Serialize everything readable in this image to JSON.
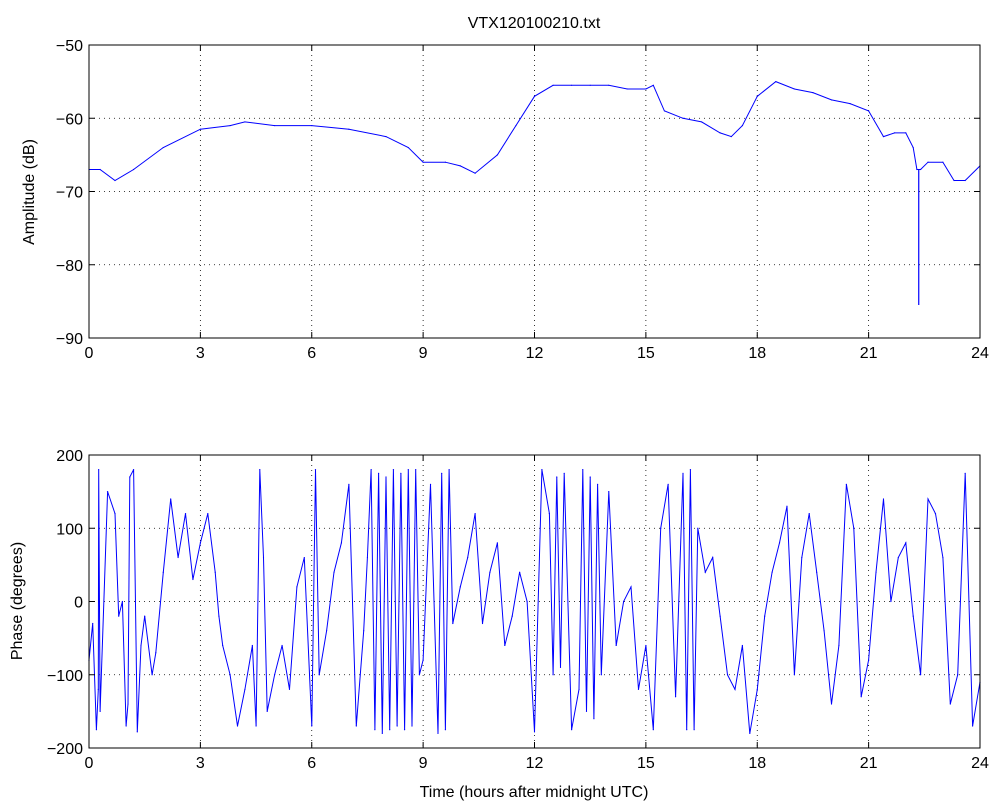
{
  "chart_data": [
    {
      "type": "line",
      "title": "VTX120100210.txt",
      "xlabel": "",
      "ylabel": "Amplitude (dB)",
      "xlim": [
        0,
        24
      ],
      "ylim": [
        -90,
        -50
      ],
      "xticks": [
        "0",
        "3",
        "6",
        "9",
        "12",
        "15",
        "18",
        "21",
        "24"
      ],
      "yticks": [
        "−90",
        "−80",
        "−70",
        "−60",
        "−50"
      ],
      "grid": true,
      "color": "#0000ff",
      "series": [
        {
          "x": [
            0,
            0.3,
            0.7,
            1.2,
            2,
            3,
            3.8,
            4.2,
            5,
            6,
            7,
            8,
            8.6,
            9,
            9.6,
            10,
            10.4,
            11,
            11.5,
            12,
            12.5,
            13,
            13.5,
            14,
            14.5,
            15,
            15.2,
            15.5,
            16,
            16.5,
            17,
            17.3,
            17.6,
            18,
            18.5,
            19,
            19.5,
            20,
            20.5,
            21,
            21.4,
            21.7,
            22,
            22.2,
            22.3,
            22.4,
            22.6,
            23,
            23.3,
            23.6,
            24
          ],
          "y": [
            -67,
            -67,
            -68.5,
            -67,
            -64,
            -61.5,
            -61,
            -60.5,
            -61,
            -61,
            -61.5,
            -62.5,
            -64,
            -66,
            -66,
            -66.5,
            -67.5,
            -65,
            -61,
            -57,
            -55.5,
            -55.5,
            -55.5,
            -55.5,
            -56,
            -56,
            -55.5,
            -59,
            -60,
            -60.5,
            -62,
            -62.5,
            -61,
            -57,
            -55,
            -56,
            -56.5,
            -57.5,
            -58,
            -59,
            -62.5,
            -62,
            -62,
            -64,
            -67,
            -67,
            -66,
            -66,
            -68.5,
            -68.5,
            -66.5
          ]
        }
      ],
      "dips": [
        {
          "x": 22.35,
          "y": -85.5
        }
      ]
    },
    {
      "type": "line",
      "title": "",
      "xlabel": "Time (hours after midnight UTC)",
      "ylabel": "Phase (degrees)",
      "xlim": [
        0,
        24
      ],
      "ylim": [
        -200,
        200
      ],
      "xticks": [
        "0",
        "3",
        "6",
        "9",
        "12",
        "15",
        "18",
        "21",
        "24"
      ],
      "yticks": [
        "−200",
        "−100",
        "0",
        "100",
        "200"
      ],
      "grid": true,
      "color": "#0000ff",
      "series": [
        {
          "x": [
            0,
            0.1,
            0.2,
            0.25,
            0.26,
            0.3,
            0.5,
            0.7,
            0.8,
            0.9,
            1.0,
            1.05,
            1.1,
            1.2,
            1.3,
            1.4,
            1.5,
            1.7,
            1.8,
            2.0,
            2.2,
            2.4,
            2.6,
            2.8,
            3.0,
            3.2,
            3.4,
            3.5,
            3.6,
            3.8,
            4.0,
            4.2,
            4.4,
            4.5,
            4.6,
            4.7,
            4.8,
            5.0,
            5.2,
            5.4,
            5.6,
            5.8,
            6.0,
            6.1,
            6.2,
            6.4,
            6.6,
            6.8,
            7.0,
            7.2,
            7.4,
            7.5,
            7.6,
            7.7,
            7.8,
            7.9,
            8.0,
            8.1,
            8.2,
            8.3,
            8.4,
            8.5,
            8.6,
            8.7,
            8.8,
            8.9,
            9.0,
            9.2,
            9.4,
            9.5,
            9.6,
            9.7,
            9.8,
            10.0,
            10.2,
            10.4,
            10.6,
            10.8,
            11.0,
            11.2,
            11.4,
            11.6,
            11.8,
            12.0,
            12.2,
            12.4,
            12.5,
            12.6,
            12.7,
            12.8,
            13.0,
            13.2,
            13.3,
            13.4,
            13.5,
            13.6,
            13.7,
            13.8,
            14.0,
            14.2,
            14.4,
            14.6,
            14.8,
            15.0,
            15.2,
            15.4,
            15.6,
            15.8,
            16.0,
            16.1,
            16.2,
            16.3,
            16.4,
            16.6,
            16.8,
            17.0,
            17.2,
            17.4,
            17.6,
            17.8,
            18.0,
            18.2,
            18.4,
            18.6,
            18.8,
            19.0,
            19.2,
            19.4,
            19.6,
            19.8,
            20.0,
            20.2,
            20.4,
            20.6,
            20.8,
            21.0,
            21.2,
            21.4,
            21.6,
            21.8,
            22.0,
            22.2,
            22.4,
            22.6,
            22.8,
            23.0,
            23.2,
            23.4,
            23.6,
            23.8,
            24.0
          ],
          "y": [
            -80,
            -30,
            -175,
            -120,
            180,
            -150,
            150,
            120,
            -20,
            0,
            -170,
            -140,
            170,
            180,
            -178,
            -60,
            -20,
            -100,
            -70,
            40,
            140,
            60,
            120,
            30,
            80,
            120,
            40,
            -20,
            -60,
            -100,
            -170,
            -120,
            -60,
            -170,
            180,
            60,
            -150,
            -100,
            -60,
            -120,
            20,
            60,
            -170,
            180,
            -100,
            -40,
            40,
            80,
            160,
            -170,
            -40,
            60,
            180,
            -175,
            175,
            -180,
            170,
            -175,
            180,
            -170,
            175,
            -175,
            180,
            -170,
            180,
            -100,
            -80,
            160,
            -180,
            175,
            -175,
            180,
            -30,
            20,
            60,
            120,
            -30,
            40,
            80,
            -60,
            -20,
            40,
            0,
            -178,
            180,
            120,
            -100,
            170,
            -90,
            175,
            -175,
            -120,
            180,
            -150,
            170,
            -160,
            160,
            -100,
            150,
            -60,
            0,
            20,
            -120,
            -60,
            -175,
            100,
            160,
            -130,
            175,
            -175,
            180,
            -175,
            100,
            40,
            60,
            -20,
            -100,
            -120,
            -60,
            -180,
            -120,
            -20,
            40,
            80,
            130,
            -100,
            60,
            120,
            40,
            -40,
            -140,
            -60,
            160,
            100,
            -130,
            -80,
            40,
            140,
            0,
            60,
            80,
            -20,
            -100,
            140,
            120,
            60,
            -140,
            -100,
            175,
            -170,
            -110
          ],
          "wraps": true
        }
      ]
    }
  ]
}
